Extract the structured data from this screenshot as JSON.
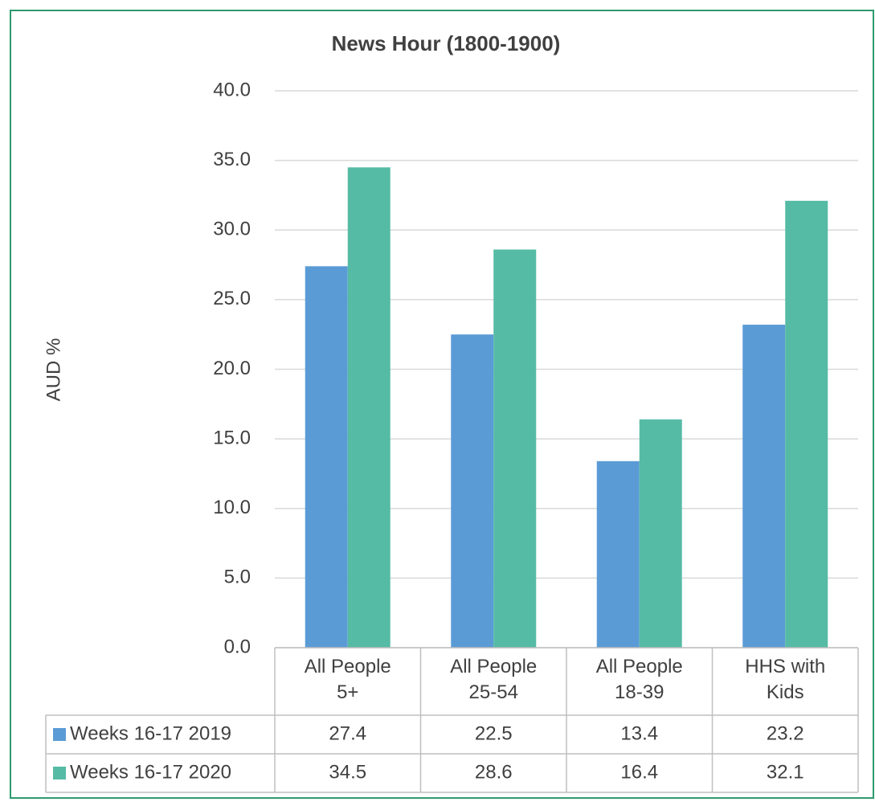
{
  "chart_data": {
    "type": "bar",
    "title": "News Hour (1800-1900)",
    "y_label": "AUD %",
    "categories": [
      "All People 5+",
      "All People 25-54",
      "All People 18-39",
      "HHS with Kids"
    ],
    "series": [
      {
        "name": "Weeks 16-17 2019",
        "color": "#5b9bd5",
        "values": [
          27.4,
          22.5,
          13.4,
          23.2
        ]
      },
      {
        "name": "Weeks 16-17 2020",
        "color": "#56bba5",
        "values": [
          34.5,
          28.6,
          16.4,
          32.1
        ]
      }
    ],
    "ylim": [
      0,
      40
    ],
    "yticks": [
      {
        "value": 0,
        "label": "0.0"
      },
      {
        "value": 5,
        "label": "5.0"
      },
      {
        "value": 10,
        "label": "10.0"
      },
      {
        "value": 15,
        "label": "15.0"
      },
      {
        "value": 20,
        "label": "20.0"
      },
      {
        "value": 25,
        "label": "25.0"
      },
      {
        "value": 30,
        "label": "30.0"
      },
      {
        "value": 35,
        "label": "35.0"
      },
      {
        "value": 40,
        "label": "40.0"
      }
    ],
    "grid": true,
    "data_table": true
  }
}
